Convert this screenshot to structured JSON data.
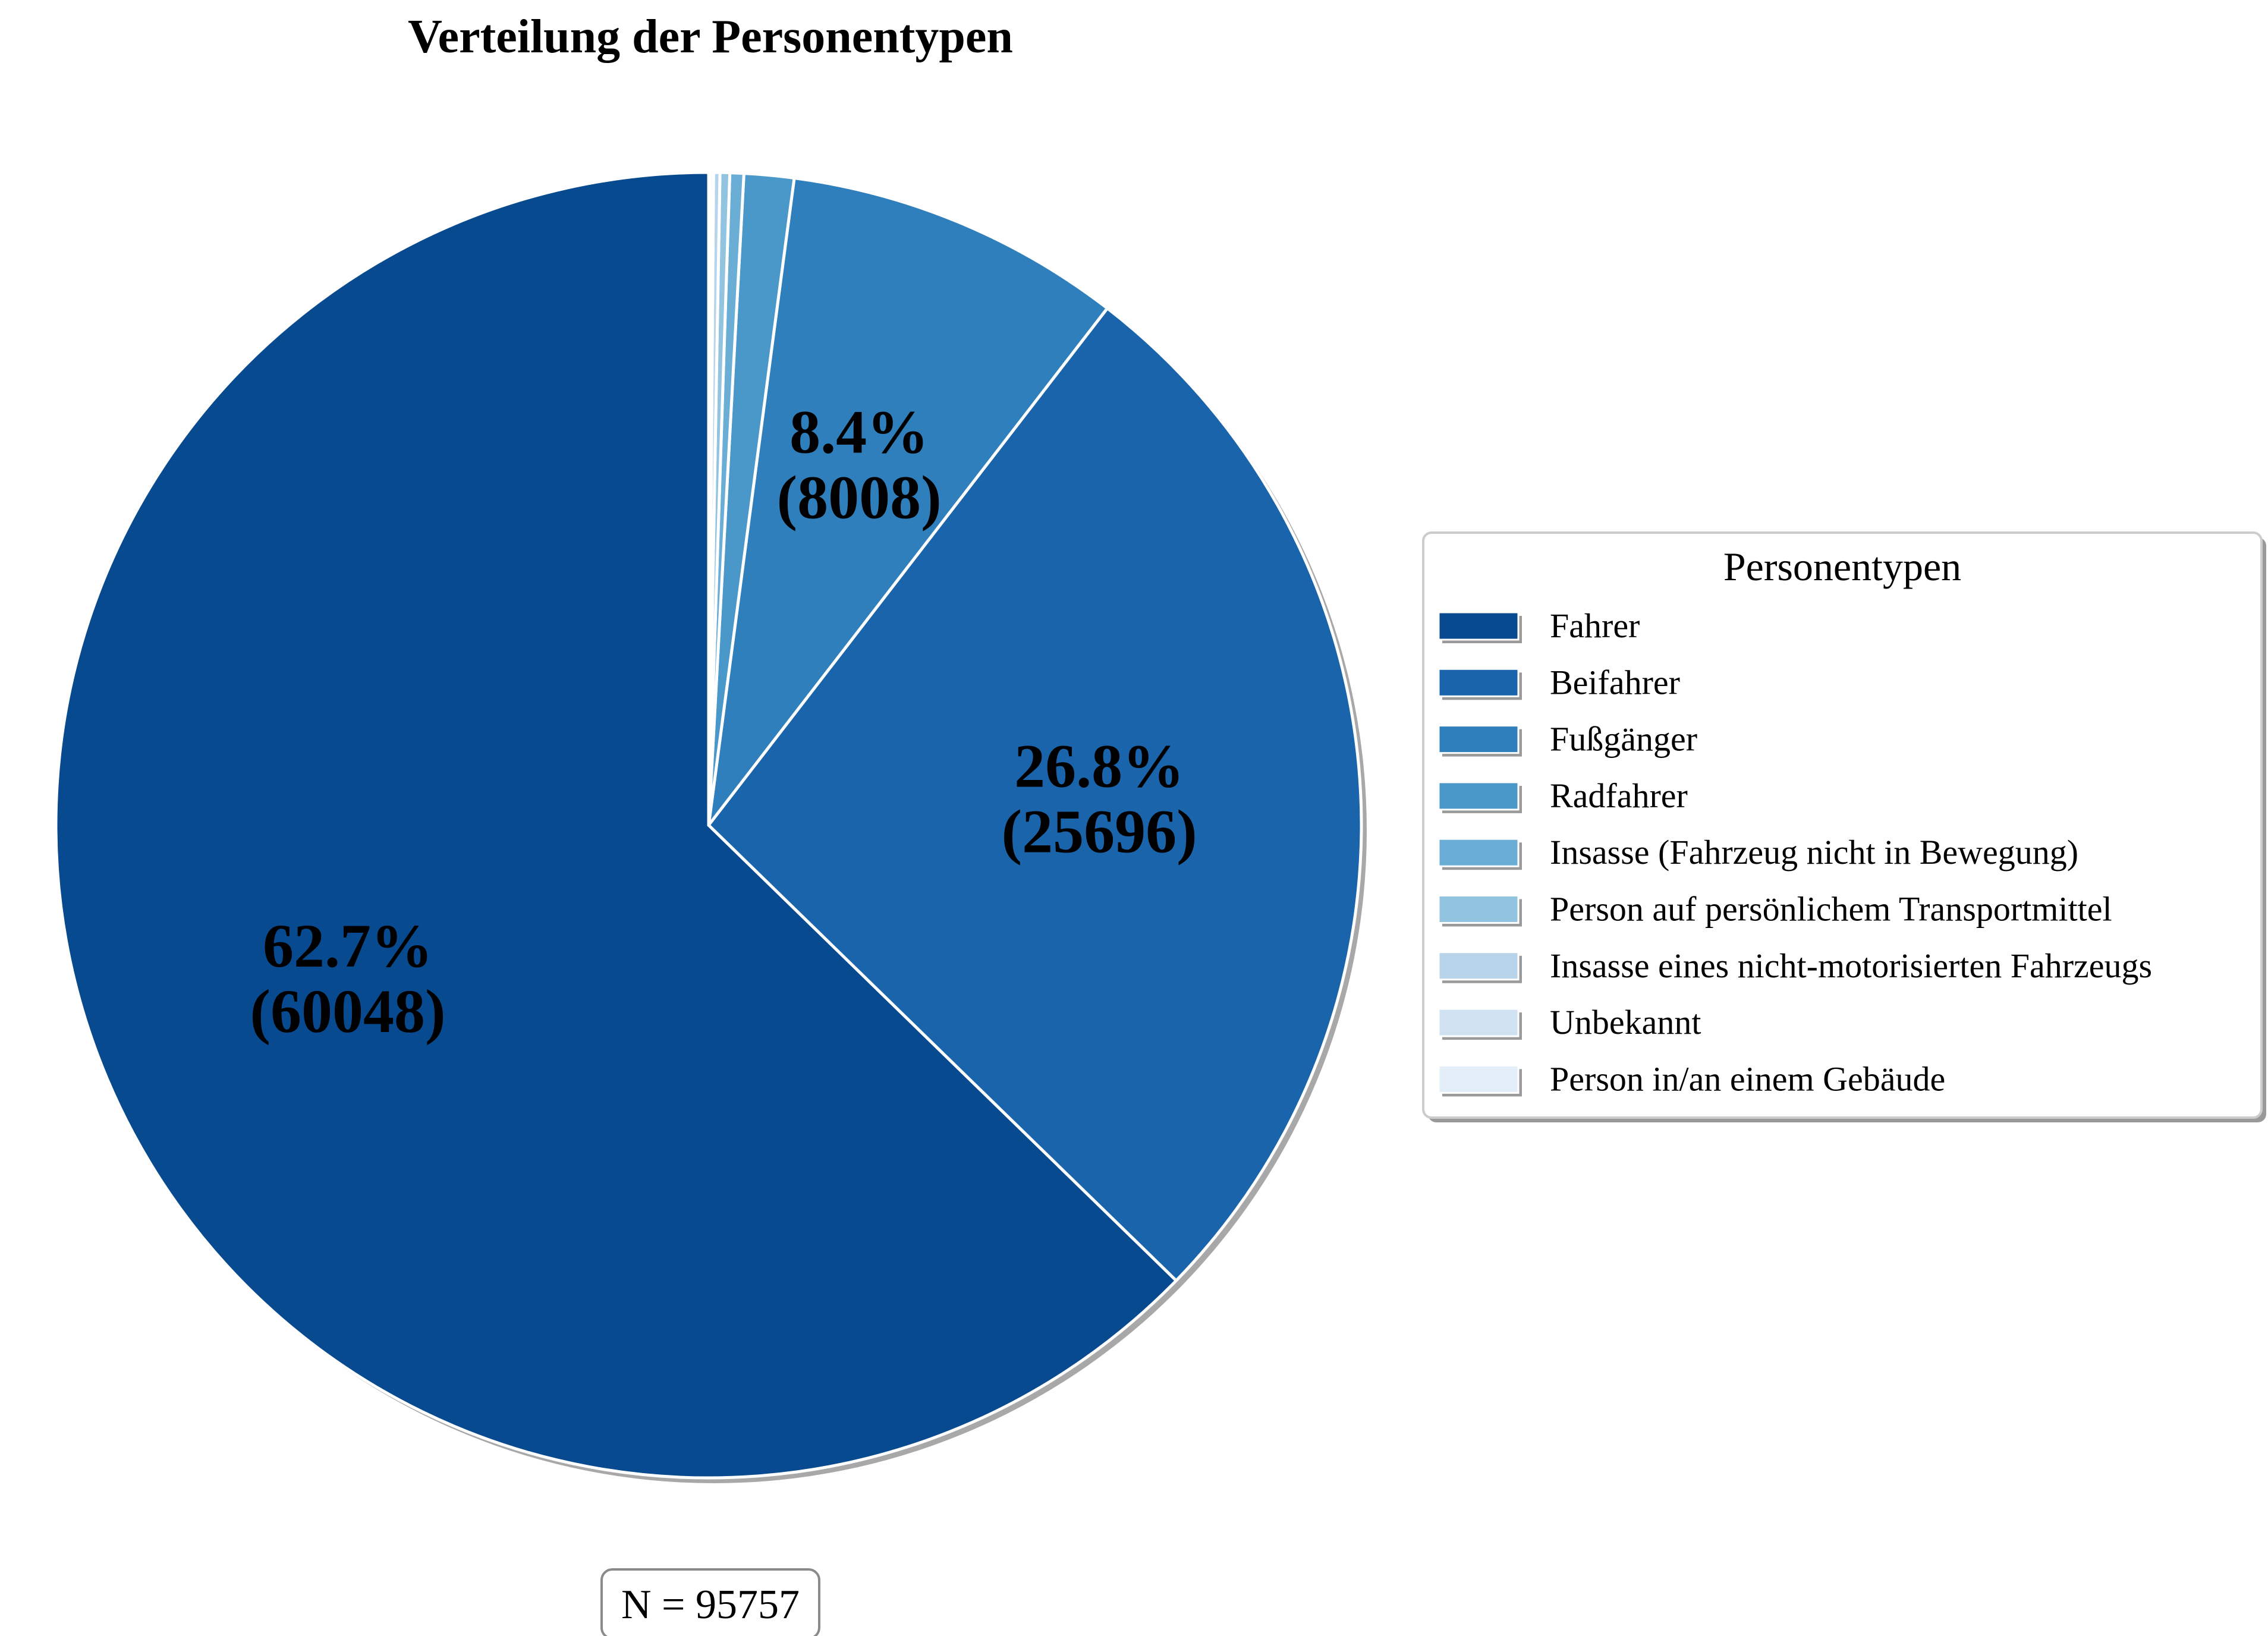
{
  "chart_data": {
    "type": "pie",
    "title": "Verteilung der Personentypen",
    "total_label": "N = 95757",
    "legend": {
      "title": "Personentypen",
      "placement": "right"
    },
    "slices": [
      {
        "name": "Fahrer",
        "value": 60048,
        "percent_label": "62.7%",
        "value_label": "(60048)",
        "color": "#084a8f"
      },
      {
        "name": "Beifahrer",
        "value": 25696,
        "percent_label": "26.8%",
        "value_label": "(25696)",
        "color": "#1964aa"
      },
      {
        "name": "Fußgänger",
        "value": 8008,
        "percent_label": "8.4%",
        "value_label": "(8008)",
        "color": "#2f7fbc"
      },
      {
        "name": "Radfahrer",
        "value": 1180,
        "percent_label": "",
        "value_label": "",
        "color": "#4a98c9"
      },
      {
        "name": "Insasse (Fahrzeug nicht in Bewegung)",
        "value": 330,
        "percent_label": "",
        "value_label": "",
        "color": "#6aaed6"
      },
      {
        "name": "Person auf persönlichem Transportmittel",
        "value": 230,
        "percent_label": "",
        "value_label": "",
        "color": "#93c4df"
      },
      {
        "name": "Insasse eines nicht-motorisierten Fahrzeugs",
        "value": 150,
        "percent_label": "",
        "value_label": "",
        "color": "#b7d4ea"
      },
      {
        "name": "Unbekannt",
        "value": 75,
        "percent_label": "",
        "value_label": "",
        "color": "#d0e1f2"
      },
      {
        "name": "Person in/an einem Gebäude",
        "value": 40,
        "percent_label": "",
        "value_label": "",
        "color": "#e3eef9"
      }
    ]
  }
}
